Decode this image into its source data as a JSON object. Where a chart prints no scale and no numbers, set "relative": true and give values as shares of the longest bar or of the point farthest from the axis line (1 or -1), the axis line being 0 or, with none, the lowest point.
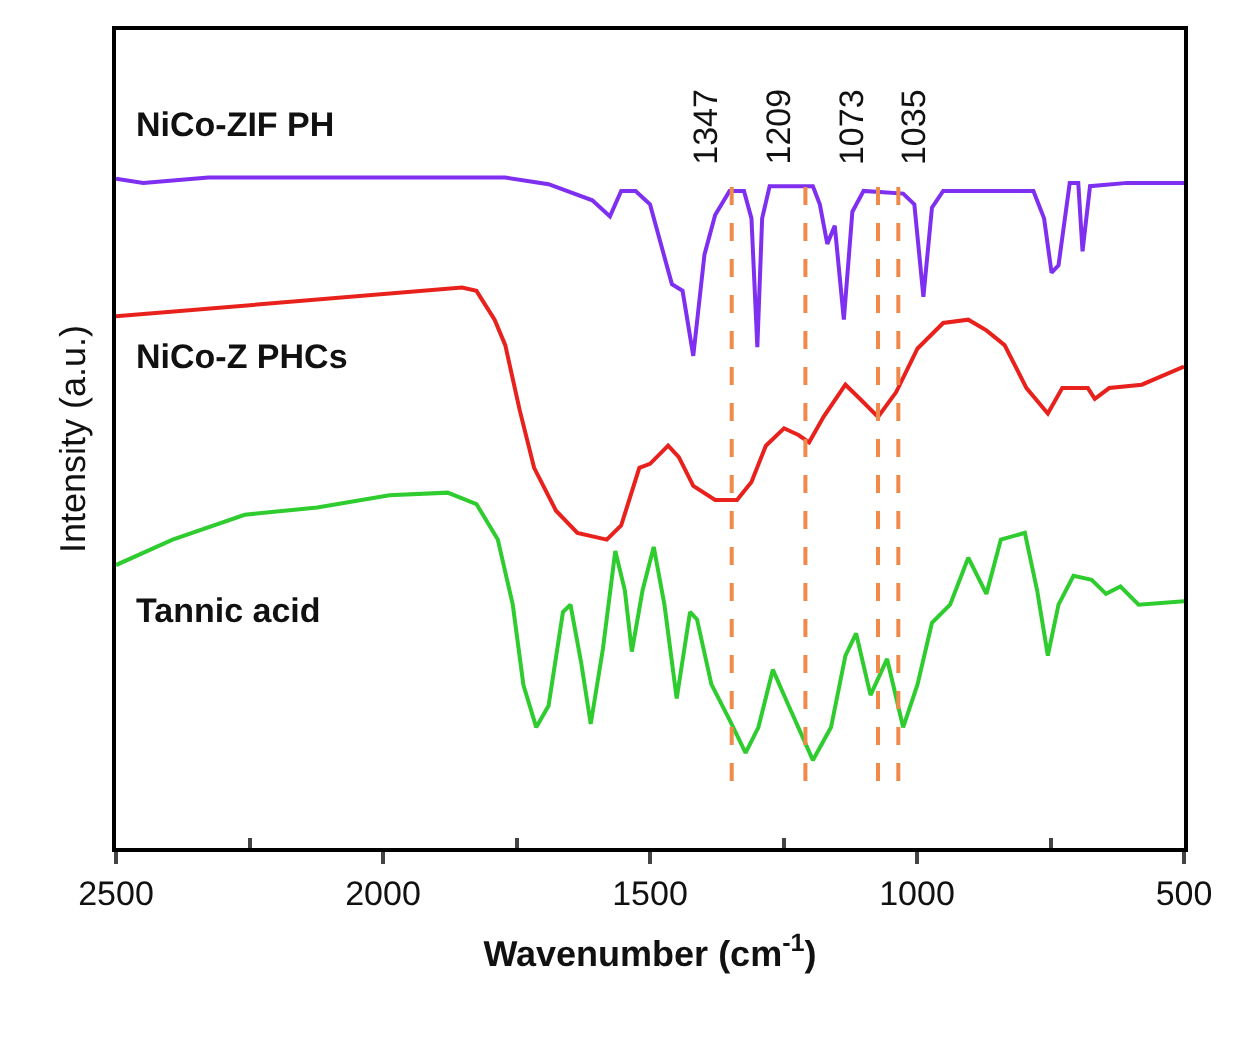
{
  "chart_data": {
    "type": "line",
    "relative": true,
    "xlabel": "Wavenumber (cm$^{-1}$)",
    "ylabel": "Intensity (a.u.)",
    "xlim": [
      2500,
      500
    ],
    "xticks": [
      2500,
      2000,
      1500,
      1000,
      500
    ],
    "legend": false,
    "marker": "none",
    "line_style": "solid",
    "series": [
      {
        "name": "NiCo-ZIF PH",
        "color": "#7f2fef",
        "x": [
          2500,
          2449,
          2327,
          1771,
          1690,
          1608,
          1575,
          1554,
          1527,
          1500,
          1459,
          1439,
          1419,
          1398,
          1378,
          1351,
          1324,
          1310,
          1299,
          1290,
          1276,
          1195,
          1182,
          1168,
          1154,
          1137,
          1121,
          1100,
          1026,
          1005,
          988,
          972,
          951,
          782,
          762,
          748,
          735,
          714,
          698,
          690,
          676,
          606,
          500
        ],
        "values": [
          0.998,
          0.992,
          1.0,
          1.0,
          0.99,
          0.966,
          0.942,
          0.98,
          0.98,
          0.96,
          0.841,
          0.831,
          0.734,
          0.885,
          0.944,
          0.98,
          0.98,
          0.939,
          0.747,
          0.939,
          0.987,
          0.987,
          0.96,
          0.901,
          0.928,
          0.788,
          0.949,
          0.98,
          0.976,
          0.96,
          0.822,
          0.955,
          0.98,
          0.98,
          0.939,
          0.858,
          0.869,
          0.992,
          0.992,
          0.89,
          0.987,
          0.992,
          0.992
        ]
      },
      {
        "name": "NiCo-Z PHCs",
        "color": "#e8211c",
        "x": [
          2500,
          1852,
          1825,
          1791,
          1771,
          1744,
          1717,
          1676,
          1636,
          1581,
          1554,
          1520,
          1500,
          1466,
          1446,
          1419,
          1378,
          1337,
          1310,
          1283,
          1249,
          1222,
          1202,
          1175,
          1134,
          1107,
          1073,
          1039,
          999,
          951,
          904,
          870,
          836,
          795,
          755,
          728,
          680,
          667,
          640,
          579,
          500
        ],
        "values": [
          0.793,
          0.836,
          0.831,
          0.788,
          0.75,
          0.653,
          0.567,
          0.503,
          0.47,
          0.46,
          0.481,
          0.567,
          0.573,
          0.6,
          0.583,
          0.54,
          0.519,
          0.519,
          0.546,
          0.6,
          0.626,
          0.616,
          0.605,
          0.643,
          0.691,
          0.67,
          0.643,
          0.68,
          0.745,
          0.783,
          0.788,
          0.772,
          0.75,
          0.686,
          0.648,
          0.686,
          0.686,
          0.67,
          0.686,
          0.691,
          0.718
        ]
      },
      {
        "name": "Tannic acid",
        "color": "#2ecc2e",
        "x": [
          2500,
          2394,
          2259,
          2123,
          1988,
          1879,
          1825,
          1785,
          1757,
          1737,
          1713,
          1690,
          1663,
          1649,
          1629,
          1611,
          1588,
          1565,
          1547,
          1534,
          1514,
          1493,
          1473,
          1450,
          1425,
          1412,
          1385,
          1351,
          1321,
          1297,
          1270,
          1243,
          1195,
          1161,
          1134,
          1114,
          1087,
          1056,
          1026,
          999,
          972,
          938,
          904,
          870,
          843,
          798,
          775,
          755,
          735,
          707,
          673,
          646,
          619,
          585,
          500
        ],
        "values": [
          0.422,
          0.46,
          0.497,
          0.508,
          0.526,
          0.53,
          0.513,
          0.46,
          0.363,
          0.243,
          0.18,
          0.212,
          0.352,
          0.363,
          0.277,
          0.185,
          0.298,
          0.443,
          0.384,
          0.293,
          0.384,
          0.449,
          0.363,
          0.223,
          0.352,
          0.341,
          0.244,
          0.191,
          0.142,
          0.18,
          0.266,
          0.217,
          0.131,
          0.18,
          0.287,
          0.32,
          0.228,
          0.282,
          0.18,
          0.244,
          0.336,
          0.363,
          0.433,
          0.379,
          0.46,
          0.47,
          0.384,
          0.287,
          0.363,
          0.406,
          0.4,
          0.379,
          0.39,
          0.363,
          0.368
        ]
      }
    ],
    "ref_lines": [
      {
        "axis": "x",
        "value": 1347,
        "label": "1347",
        "color": "#f08a4b",
        "line_style": "dashed"
      },
      {
        "axis": "x",
        "value": 1209,
        "label": "1209",
        "color": "#f08a4b",
        "line_style": "dashed"
      },
      {
        "axis": "x",
        "value": 1073,
        "label": "1073",
        "color": "#f08a4b",
        "line_style": "dashed"
      },
      {
        "axis": "x",
        "value": 1035,
        "label": "1035",
        "color": "#f08a4b",
        "line_style": "dashed"
      }
    ]
  }
}
